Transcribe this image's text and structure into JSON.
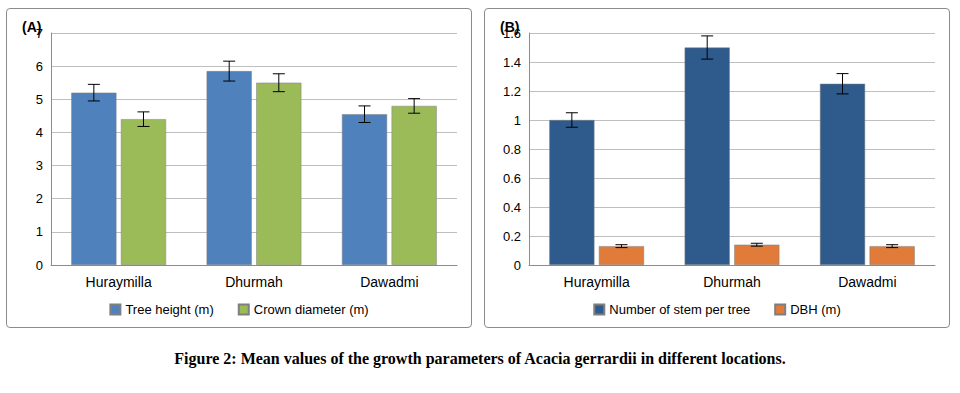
{
  "chart_data": [
    {
      "type": "bar",
      "title": "(A)",
      "categories": [
        "Huraymilla",
        "Dhurmah",
        "Dawadmi"
      ],
      "series": [
        {
          "name": "Tree height (m)",
          "color": "#4f81bd",
          "values": [
            5.2,
            5.85,
            4.55
          ],
          "errors": [
            0.25,
            0.3,
            0.25
          ]
        },
        {
          "name": "Crown diameter (m)",
          "color": "#9bbb59",
          "values": [
            4.4,
            5.5,
            4.8
          ],
          "errors": [
            0.22,
            0.27,
            0.22
          ]
        }
      ],
      "ylim": [
        0,
        7
      ],
      "yticks": [
        0,
        1,
        2,
        3,
        4,
        5,
        6,
        7
      ],
      "grid": true,
      "legend": "bottom"
    },
    {
      "type": "bar",
      "title": "(B)",
      "categories": [
        "Huraymilla",
        "Dhurmah",
        "Dawadmi"
      ],
      "series": [
        {
          "name": "Number of stem per tree",
          "color": "#2f5b8c",
          "values": [
            1.0,
            1.5,
            1.25
          ],
          "errors": [
            0.05,
            0.08,
            0.07
          ]
        },
        {
          "name": "DBH (m)",
          "color": "#e07b39",
          "values": [
            0.13,
            0.14,
            0.13
          ],
          "errors": [
            0.01,
            0.01,
            0.01
          ]
        }
      ],
      "ylim": [
        0,
        1.6
      ],
      "yticks": [
        0,
        0.2,
        0.4,
        0.6,
        0.8,
        1,
        1.2,
        1.4,
        1.6
      ],
      "grid": true,
      "legend": "bottom"
    }
  ],
  "caption": "Figure 2: Mean values of the growth parameters of Acacia gerrardii in different locations."
}
